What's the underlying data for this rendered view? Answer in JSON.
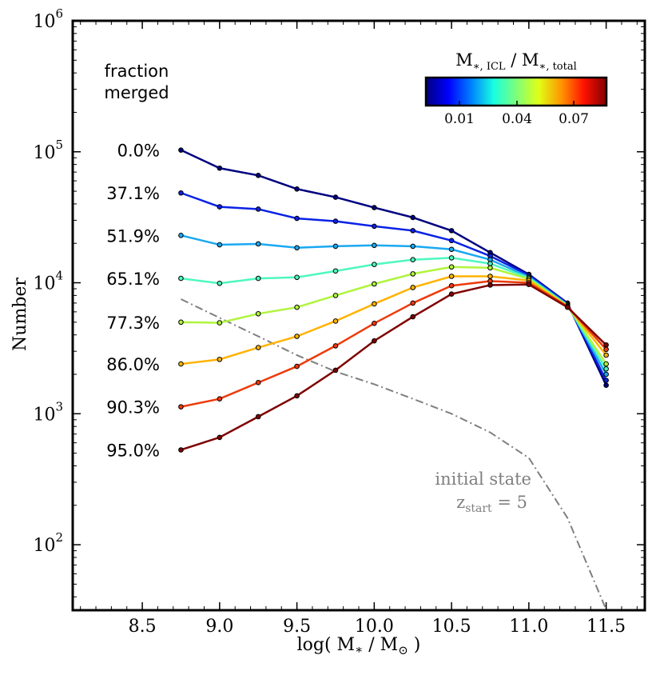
{
  "chart_data": {
    "type": "line",
    "ylabel": "Number",
    "xlabel": "log( M* / M⊙ )",
    "xlabel_parts": {
      "open": "log( M",
      "star": "∗",
      "sep": " / M",
      "sun": "⊙",
      "close": " )"
    },
    "xlim": [
      8.05,
      11.75
    ],
    "ylim_log10": [
      1.5,
      6
    ],
    "yscale": "log",
    "x_ticks": [
      "8.5",
      "9.0",
      "9.5",
      "10.0",
      "10.5",
      "11.0",
      "11.5"
    ],
    "y_ticks": [
      {
        "base": "10",
        "exp": "2"
      },
      {
        "base": "10",
        "exp": "3"
      },
      {
        "base": "10",
        "exp": "4"
      },
      {
        "base": "10",
        "exp": "5"
      },
      {
        "base": "10",
        "exp": "6"
      }
    ],
    "x": [
      8.75,
      9.0,
      9.25,
      9.5,
      9.75,
      10.0,
      10.25,
      10.5,
      10.75,
      11.0,
      11.25,
      11.5
    ],
    "legend_header": [
      "fraction",
      "merged"
    ],
    "series": [
      {
        "name": "0.0%",
        "color": "#00007f",
        "values": [
          103000,
          75000,
          66000,
          52000,
          45000,
          37500,
          31500,
          25000,
          17000,
          11600,
          7000,
          1650
        ]
      },
      {
        "name": "37.1%",
        "color": "#0a22e6",
        "values": [
          48500,
          38000,
          36500,
          31000,
          29500,
          27000,
          25000,
          21000,
          16000,
          11400,
          6900,
          1800
        ]
      },
      {
        "name": "51.9%",
        "color": "#1aa8f2",
        "values": [
          23000,
          19500,
          19800,
          18500,
          19000,
          19300,
          19000,
          18000,
          15000,
          11100,
          6800,
          2000
        ]
      },
      {
        "name": "65.1%",
        "color": "#4ef8bd",
        "values": [
          10800,
          9900,
          10800,
          11000,
          12300,
          13800,
          15000,
          15500,
          14000,
          10900,
          6700,
          2200
        ]
      },
      {
        "name": "77.3%",
        "color": "#b0f53e",
        "values": [
          5000,
          4950,
          5800,
          6500,
          8000,
          9800,
          11700,
          13200,
          13000,
          10700,
          6700,
          2400
        ]
      },
      {
        "name": "86.0%",
        "color": "#ffb300",
        "values": [
          2400,
          2600,
          3200,
          3900,
          5100,
          6900,
          9200,
          11200,
          11200,
          10400,
          6600,
          2800
        ]
      },
      {
        "name": "90.3%",
        "color": "#ee3a0a",
        "values": [
          1130,
          1300,
          1730,
          2300,
          3300,
          4900,
          7000,
          9500,
          10300,
          10000,
          6600,
          3100
        ]
      },
      {
        "name": "95.0%",
        "color": "#7f0000",
        "values": [
          530,
          660,
          950,
          1370,
          2150,
          3600,
          5500,
          8200,
          9600,
          9700,
          6500,
          3350
        ]
      }
    ],
    "initial_state": {
      "label": "initial state",
      "z_label": "z",
      "z_subscript": "start",
      "z_value": " = 5",
      "color": "#7f7f7f",
      "x": [
        8.75,
        9.0,
        9.25,
        9.5,
        9.75,
        10.0,
        10.25,
        10.5,
        10.75,
        11.0,
        11.25,
        11.5
      ],
      "values": [
        7500,
        5400,
        3900,
        2800,
        2100,
        1680,
        1300,
        1000,
        720,
        460,
        160,
        32
      ]
    },
    "colorbar": {
      "title": "M∗, ICL / M∗, total",
      "title_parts": {
        "m1": "M",
        "sub1": "∗, ICL",
        "sep": " / M",
        "sub2": "∗, total"
      },
      "ticks": [
        "0.01",
        "0.04",
        "0.07"
      ],
      "stops": [
        "#00007f",
        "#0000ff",
        "#0080ff",
        "#17ffe0",
        "#7dff7a",
        "#e0ff17",
        "#ff9500",
        "#ff1100",
        "#7f0000"
      ]
    }
  }
}
